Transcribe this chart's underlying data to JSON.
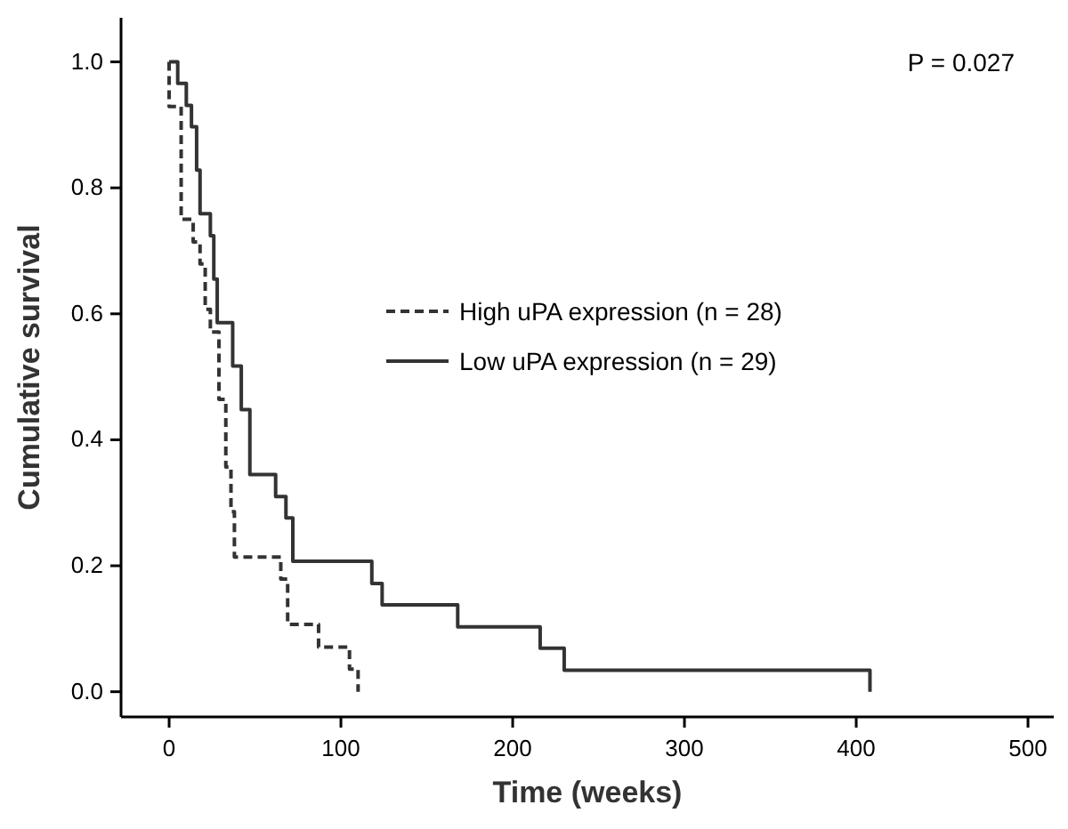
{
  "chart_data": {
    "type": "step",
    "xlabel": "Time (weeks)",
    "ylabel": "Cumulative survival",
    "annotations": [
      "P = 0.027"
    ],
    "xlim": [
      -28,
      515
    ],
    "xticks": [
      0,
      100,
      200,
      300,
      400,
      500
    ],
    "ylim": [
      -0.04,
      1.07
    ],
    "yticks": [
      {
        "value": 0,
        "label": "0.0"
      },
      {
        "value": 0.2,
        "label": "0.2"
      },
      {
        "value": 0.4,
        "label": "0.4"
      },
      {
        "value": 0.6,
        "label": "0.6"
      },
      {
        "value": 0.8,
        "label": "0.8"
      },
      {
        "value": 1,
        "label": "1.0"
      }
    ],
    "legend": "right",
    "grid": false,
    "marker": "none",
    "series": [
      {
        "name": "High uPA expression (n = 28)",
        "color": "#333333",
        "line_style": "dashed",
        "x": [
          0,
          0,
          7,
          14,
          18,
          21,
          24,
          29,
          33,
          36,
          38,
          65,
          69,
          87,
          105,
          110
        ],
        "values": [
          1,
          0.929,
          0.75,
          0.714,
          0.679,
          0.607,
          0.571,
          0.464,
          0.357,
          0.286,
          0.214,
          0.179,
          0.107,
          0.071,
          0.036,
          0
        ]
      },
      {
        "name": "Low uPA expression (n = 29)",
        "color": "#333333",
        "line_style": "solid",
        "x": [
          0,
          5,
          10,
          13,
          16,
          18,
          24,
          26,
          28,
          37,
          42,
          47,
          62,
          68,
          72,
          118,
          124,
          168,
          216,
          230,
          408
        ],
        "values": [
          1,
          0.966,
          0.931,
          0.897,
          0.828,
          0.759,
          0.724,
          0.655,
          0.586,
          0.517,
          0.448,
          0.345,
          0.31,
          0.276,
          0.207,
          0.172,
          0.138,
          0.103,
          0.069,
          0.034,
          0
        ]
      }
    ]
  }
}
